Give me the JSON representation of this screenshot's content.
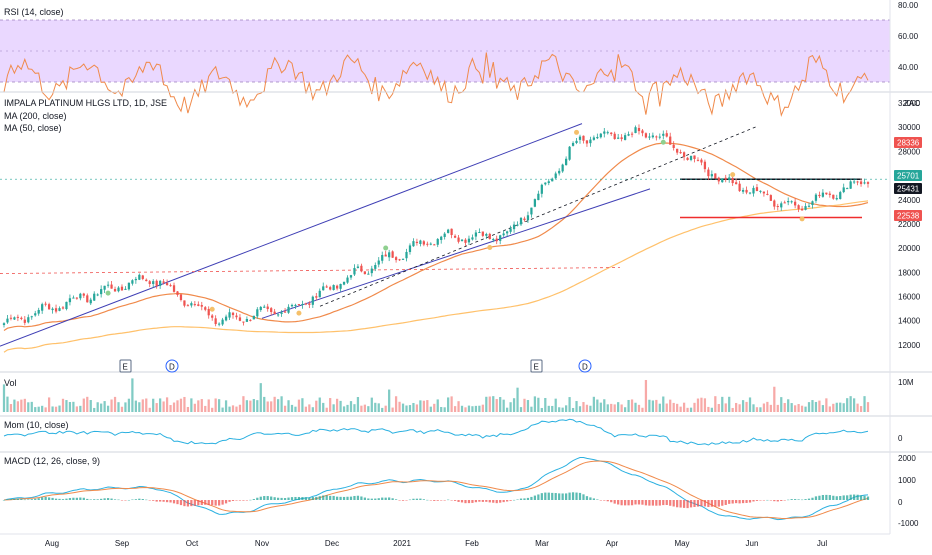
{
  "panes": {
    "rsi": {
      "label": "RSI (14, close)",
      "ticks": [
        "80.00",
        "60.00",
        "40.00"
      ],
      "band_color": "#ead8ff",
      "line_color": "#f08a4b"
    },
    "price": {
      "label": "IMPALA PLATINUM HLGS LTD, 1D, JSE",
      "ma200_label": "MA (200, close)",
      "ma50_label": "MA (50, close)",
      "currency": "ZAC",
      "ticks": [
        "32000",
        "30000",
        "28000",
        "26000",
        "24000",
        "22000",
        "20000",
        "18000",
        "16000",
        "14000",
        "12000"
      ],
      "tags": {
        "t28336": "28336",
        "t25701": "25701",
        "t25431": "25431",
        "t22538": "22538"
      },
      "markers": {
        "e": "E",
        "d": "D"
      }
    },
    "vol": {
      "label": "Vol",
      "ticks": [
        "10M"
      ]
    },
    "mom": {
      "label": "Mom (10, close)",
      "ticks": [
        "0"
      ]
    },
    "macd": {
      "label": "MACD (12, 26, close, 9)",
      "ticks": [
        "2000",
        "1000",
        "0",
        "-1000"
      ]
    }
  },
  "x_axis": [
    "Aug",
    "Sep",
    "Oct",
    "Nov",
    "Dec",
    "2021",
    "Feb",
    "Mar",
    "Apr",
    "May",
    "Jun",
    "Jul"
  ],
  "colors": {
    "up": "#26a69a",
    "down": "#ef5350",
    "ma200": "#ffc16b",
    "ma50": "#f08a4b",
    "channel": "#3f3fb5",
    "resist": "#131722",
    "support": "#ef2d2d",
    "tag_red": "#ef5350",
    "tag_green": "#26a69a",
    "tag_dark": "#131722"
  },
  "chart_data": {
    "type": "candlestick",
    "title": "IMPALA PLATINUM HLGS LTD, 1D, JSE",
    "x_range": [
      "Jul 2020",
      "Jul 2021"
    ],
    "ylim": [
      11000,
      32500
    ],
    "close_anchors": [
      {
        "x": "Jul",
        "y": 13800
      },
      {
        "x": "Aug",
        "y": 15800
      },
      {
        "x": "Sep",
        "y": 17600
      },
      {
        "x": "Oct",
        "y": 14000
      },
      {
        "x": "Nov",
        "y": 15000
      },
      {
        "x": "Dec",
        "y": 18300
      },
      {
        "x": "2021",
        "y": 21000
      },
      {
        "x": "Feb",
        "y": 21000
      },
      {
        "x": "Mar",
        "y": 29000
      },
      {
        "x": "Apr",
        "y": 29500
      },
      {
        "x": "May",
        "y": 25500
      },
      {
        "x": "Jun",
        "y": 23400
      },
      {
        "x": "Jul",
        "y": 25701
      }
    ],
    "price_levels": [
      28336,
      25701,
      25431,
      22538
    ]
  }
}
